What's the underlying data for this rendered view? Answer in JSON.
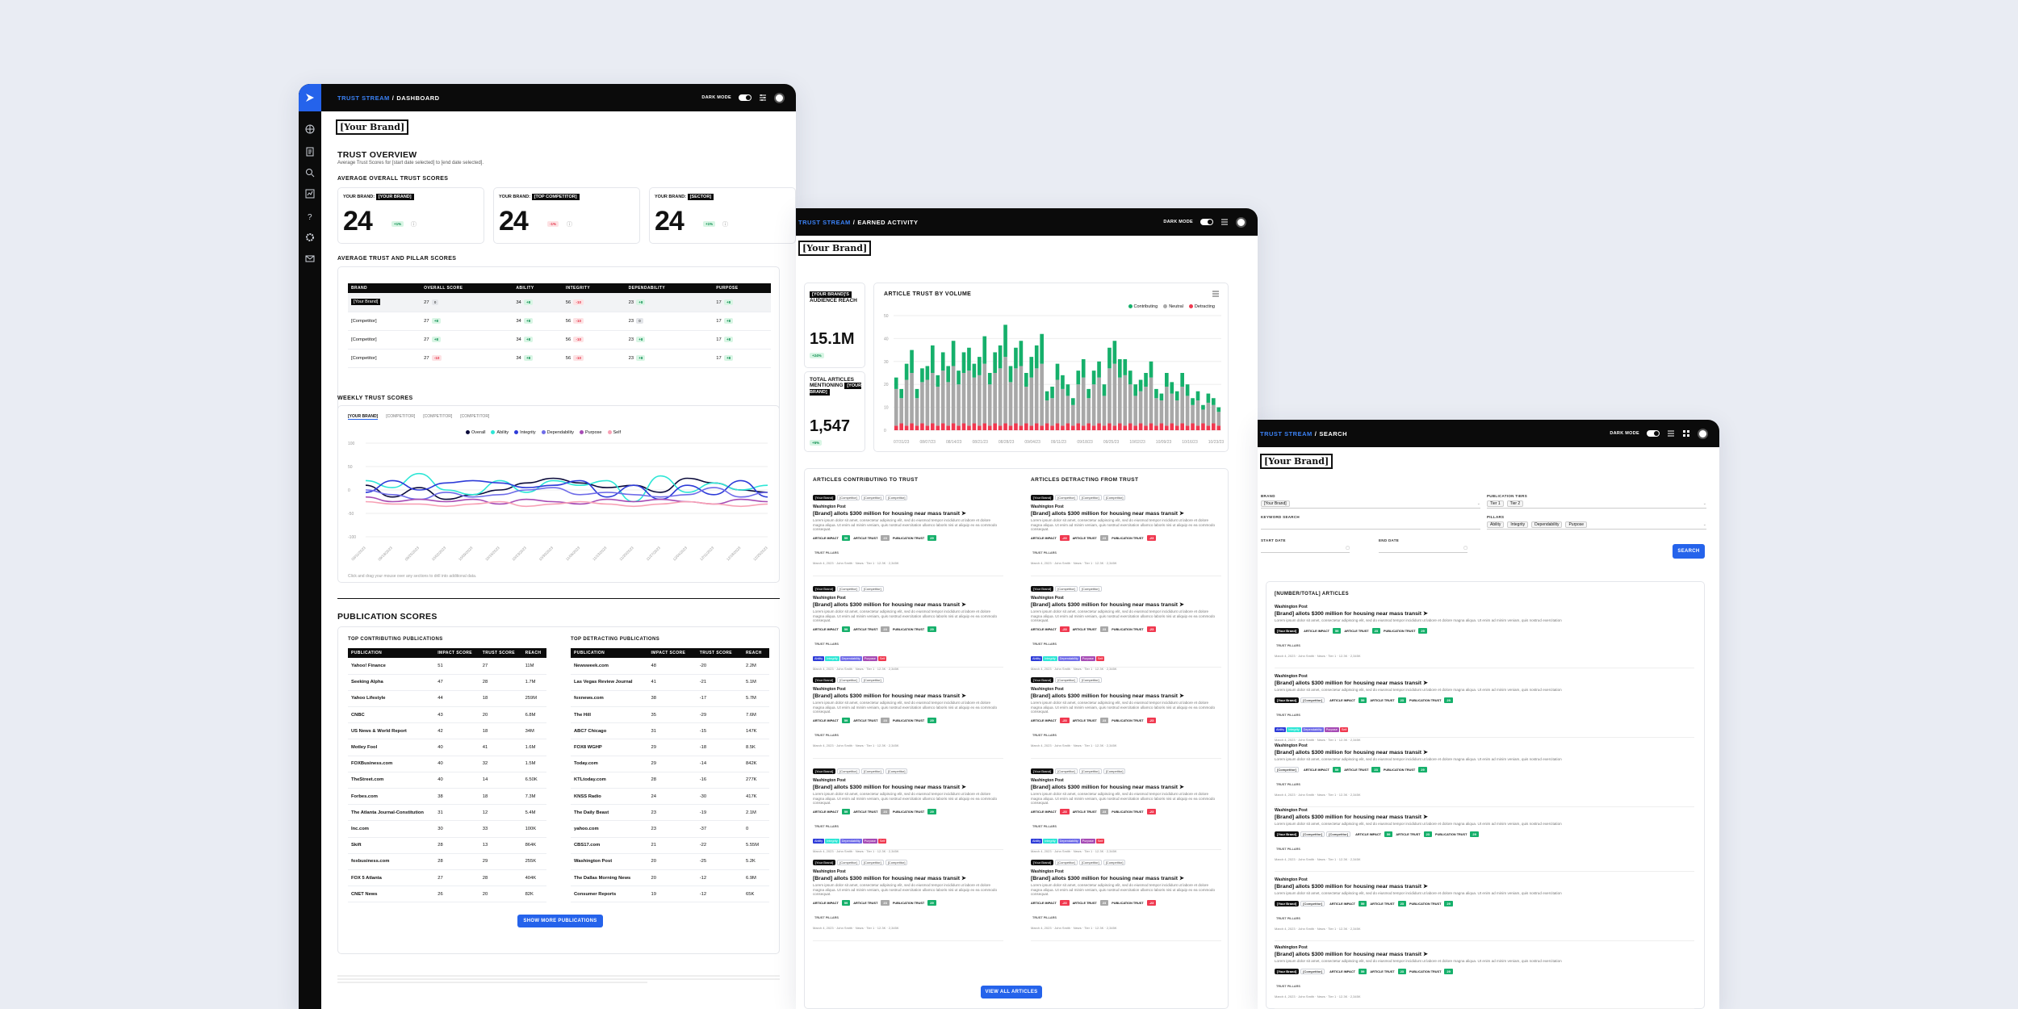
{
  "colors": {
    "accent": "#2563eb",
    "contributing": "#16b06b",
    "neutral": "#a8a8a8",
    "detracting": "#f0384f",
    "overall": "#0b0b3b",
    "ability": "#2ee6d6",
    "integrity": "#2d3bd8",
    "dependability": "#6f6ce8",
    "purpose": "#a64bb5",
    "self": "#f7a1b5"
  },
  "dashboard": {
    "breadcrumb_app": "TRUST STREAM",
    "breadcrumb_sep": "/",
    "breadcrumb_page": "DASHBOARD",
    "dark_mode": "DARK MODE",
    "brand": "[Your Brand]",
    "title": "TRUST OVERVIEW",
    "subtitle": "Average Trust Scores for [start date selected] to [end date selected].",
    "avg_overall_heading": "AVERAGE OVERALL TRUST SCORES",
    "scores": [
      {
        "label": "YOUR BRAND:",
        "chip": "[YOUR BRAND]",
        "value": "24",
        "delta": "+1%",
        "delta_type": "pos"
      },
      {
        "label": "YOUR BRAND:",
        "chip": "[TOP COMPETITOR]",
        "value": "24",
        "delta": "-1%",
        "delta_type": "neg"
      },
      {
        "label": "YOUR BRAND:",
        "chip": "[SECTOR]",
        "value": "24",
        "delta": "+1%",
        "delta_type": "pos"
      }
    ],
    "pillar_heading": "AVERAGE TRUST AND PILLAR SCORES",
    "pillar_columns": [
      "BRAND",
      "OVERALL SCORE",
      "ABILITY",
      "INTEGRITY",
      "DEPENDABILITY",
      "PURPOSE"
    ],
    "pillar_rows": [
      {
        "brand": "[Your Brand]",
        "cells": [
          [
            "27",
            "0",
            "neu"
          ],
          [
            "34",
            "+8",
            "pos"
          ],
          [
            "56",
            "-10",
            "neg"
          ],
          [
            "23",
            "+8",
            "pos"
          ],
          [
            "17",
            "+8",
            "pos"
          ]
        ]
      },
      {
        "brand": "[Competitor]",
        "cells": [
          [
            "27",
            "+8",
            "pos"
          ],
          [
            "34",
            "+8",
            "pos"
          ],
          [
            "56",
            "-10",
            "neg"
          ],
          [
            "23",
            "0",
            "neu"
          ],
          [
            "17",
            "+8",
            "pos"
          ]
        ]
      },
      {
        "brand": "[Competitor]",
        "cells": [
          [
            "27",
            "+8",
            "pos"
          ],
          [
            "34",
            "+8",
            "pos"
          ],
          [
            "56",
            "-10",
            "neg"
          ],
          [
            "23",
            "+8",
            "pos"
          ],
          [
            "17",
            "+8",
            "pos"
          ]
        ]
      },
      {
        "brand": "[Competitor]",
        "cells": [
          [
            "27",
            "-10",
            "neg"
          ],
          [
            "34",
            "+8",
            "pos"
          ],
          [
            "56",
            "-10",
            "neg"
          ],
          [
            "23",
            "+8",
            "pos"
          ],
          [
            "17",
            "+8",
            "pos"
          ]
        ]
      }
    ],
    "weekly_heading": "WEEKLY TRUST SCORES",
    "weekly_tabs": [
      "[YOUR BRAND]",
      "[COMPETITOR]",
      "[COMPETITOR]",
      "[COMPETITOR]"
    ],
    "weekly_note": "Click and drag your mouse over any sections to drill into additional data.",
    "pub_heading": "PUBLICATION SCORES",
    "top_contrib_heading": "TOP CONTRIBUTING PUBLICATIONS",
    "top_detract_heading": "TOP DETRACTING PUBLICATIONS",
    "pub_columns": [
      "PUBLICATION",
      "IMPACT SCORE",
      "TRUST SCORE",
      "REACH"
    ],
    "contrib_rows": [
      [
        "Yahoo! Finance",
        "51",
        "27",
        "11M"
      ],
      [
        "Seeking Alpha",
        "47",
        "28",
        "1.7M"
      ],
      [
        "Yahoo Lifestyle",
        "44",
        "18",
        "259M"
      ],
      [
        "CNBC",
        "43",
        "20",
        "6.8M"
      ],
      [
        "US News & World Report",
        "42",
        "18",
        "34M"
      ],
      [
        "Motley Fool",
        "40",
        "41",
        "1.6M"
      ],
      [
        "FOXBusiness.com",
        "40",
        "32",
        "1.5M"
      ],
      [
        "TheStreet.com",
        "40",
        "14",
        "6.50K"
      ],
      [
        "Forbes.com",
        "38",
        "18",
        "7.3M"
      ],
      [
        "The Atlanta Journal-Constitution",
        "31",
        "12",
        "5.4M"
      ],
      [
        "Inc.com",
        "30",
        "33",
        "100K"
      ],
      [
        "Skift",
        "28",
        "13",
        "864K"
      ],
      [
        "foxbusiness.com",
        "28",
        "29",
        "255K"
      ],
      [
        "FOX 5 Atlanta",
        "27",
        "28",
        "404K"
      ],
      [
        "CNET News",
        "26",
        "20",
        "82K"
      ]
    ],
    "detract_rows": [
      [
        "Newsweek.com",
        "48",
        "-20",
        "2.2M"
      ],
      [
        "Las Vegas Review Journal",
        "41",
        "-21",
        "5.1M"
      ],
      [
        "foxnews.com",
        "38",
        "-17",
        "5.7M"
      ],
      [
        "The Hill",
        "35",
        "-29",
        "7.6M"
      ],
      [
        "ABC7 Chicago",
        "31",
        "-15",
        "147K"
      ],
      [
        "FOX8 WGHP",
        "29",
        "-18",
        "8.5K"
      ],
      [
        "Today.com",
        "29",
        "-14",
        "842K"
      ],
      [
        "KTLtoday.com",
        "28",
        "-16",
        "277K"
      ],
      [
        "KNSS Radio",
        "24",
        "-30",
        "417K"
      ],
      [
        "The Daily Beast",
        "23",
        "-19",
        "2.1M"
      ],
      [
        "yahoo.com",
        "23",
        "-37",
        "0"
      ],
      [
        "CBS17.com",
        "21",
        "-22",
        "5.55M"
      ],
      [
        "Washington Post",
        "20",
        "-25",
        "5.2K"
      ],
      [
        "The Dallas Morning News",
        "20",
        "-12",
        "6.9M"
      ],
      [
        "Consumer Reports",
        "19",
        "-12",
        "65K"
      ]
    ],
    "show_more": "SHOW MORE PUBLICATIONS"
  },
  "weekly_chart": {
    "type": "line",
    "legend": [
      "Overall",
      "Ability",
      "Integrity",
      "Dependability",
      "Purpose",
      "Self"
    ],
    "yticks": [
      "100",
      "50",
      "0",
      "-50",
      "-100"
    ],
    "ylim": [
      -100,
      100
    ],
    "x": [
      "09/11/2023",
      "09/18/2023",
      "09/25/2023",
      "10/02/2023",
      "10/09/2023",
      "10/16/2023",
      "10/23/2023",
      "10/30/2023",
      "11/06/2023",
      "11/13/2023",
      "11/20/2023",
      "11/27/2023",
      "12/04/2023",
      "12/11/2023",
      "12/18/2023",
      "12/25/2023"
    ],
    "series": [
      {
        "name": "Overall",
        "values": [
          10,
          -15,
          5,
          -20,
          -10,
          0,
          15,
          25,
          15,
          5,
          10,
          -5,
          25,
          15,
          0,
          -5
        ]
      },
      {
        "name": "Ability",
        "values": [
          20,
          5,
          35,
          0,
          -10,
          20,
          -5,
          20,
          10,
          20,
          -25,
          30,
          -5,
          15,
          0,
          10
        ]
      },
      {
        "name": "Integrity",
        "values": [
          -5,
          20,
          0,
          15,
          20,
          15,
          5,
          10,
          20,
          -15,
          10,
          -20,
          10,
          -10,
          20,
          -15
        ]
      },
      {
        "name": "Dependability",
        "values": [
          0,
          -10,
          -20,
          -5,
          -15,
          -10,
          0,
          5,
          -10,
          -5,
          -10,
          -15,
          -10,
          5,
          -15,
          -5
        ]
      },
      {
        "name": "Purpose",
        "values": [
          -15,
          -25,
          -20,
          -25,
          -20,
          -30,
          -20,
          -25,
          -30,
          -20,
          -25,
          -20,
          -25,
          -30,
          -20,
          -25
        ]
      },
      {
        "name": "Self",
        "values": [
          -25,
          -30,
          -30,
          -35,
          -30,
          -25,
          -35,
          -30,
          -25,
          -30,
          -35,
          -30,
          -25,
          -30,
          -35,
          -30
        ]
      }
    ]
  },
  "earned": {
    "breadcrumb_app": "TRUST STREAM",
    "breadcrumb_sep": "/",
    "breadcrumb_page": "EARNED ACTIVITY",
    "dark_mode": "DARK MODE",
    "brand": "[Your Brand]",
    "reach_label_pre": "",
    "reach_chip": "[YOUR BRAND]'S",
    "reach_label_post": "AUDIENCE REACH",
    "reach_value": "15.1M",
    "reach_delta": "+24%",
    "total_label": "TOTAL ARTICLES MENTIONING",
    "total_chip": "[YOUR BRAND]",
    "total_value": "1,547",
    "total_delta": "+5%",
    "chart_title": "ARTICLE TRUST BY VOLUME",
    "legend": [
      "Contributing",
      "Neutral",
      "Detracting"
    ],
    "yticks": [
      "50",
      "40",
      "30",
      "20",
      "10",
      "0"
    ],
    "xlabels": [
      "07/31/23",
      "08/07/23",
      "08/14/23",
      "08/21/23",
      "08/28/23",
      "09/04/23",
      "09/11/23",
      "09/18/23",
      "09/25/23",
      "10/02/23",
      "10/09/23",
      "10/16/23",
      "10/23/23"
    ],
    "contrib_heading": "ARTICLES CONTRIBUTING TO TRUST",
    "detract_heading": "ARTICLES DETRACTING FROM TRUST",
    "view_all": "VIEW ALL ARTICLES"
  },
  "chart_data": {
    "type": "bar",
    "stacked": true,
    "categories": [
      "07/31/23",
      "",
      "",
      "",
      "",
      "08/07/23",
      "",
      "",
      "",
      "",
      "08/14/23",
      "",
      "",
      "",
      "",
      "08/21/23",
      "",
      "",
      "",
      "",
      "08/28/23",
      "",
      "",
      "",
      "",
      "09/04/23",
      "",
      "",
      "",
      "",
      "09/11/23",
      "",
      "",
      "",
      "",
      "09/18/23",
      "",
      "",
      "",
      "",
      "09/25/23",
      "",
      "",
      "",
      "",
      "10/02/23",
      "",
      "",
      "",
      "",
      "10/09/23",
      "",
      "",
      "",
      "",
      "10/16/23",
      "",
      "",
      "",
      "",
      "10/23/23",
      "",
      ""
    ],
    "series": [
      {
        "name": "Contributing",
        "values": [
          5,
          4,
          7,
          10,
          4,
          6,
          6,
          12,
          5,
          8,
          7,
          11,
          6,
          9,
          10,
          6,
          8,
          12,
          5,
          9,
          10,
          14,
          7,
          9,
          11,
          6,
          9,
          10,
          13,
          4,
          5,
          7,
          6,
          5,
          3,
          6,
          8,
          4,
          6,
          7,
          5,
          9,
          10,
          8,
          7,
          6,
          5,
          5,
          6,
          7,
          4,
          3,
          6,
          5,
          4,
          6,
          5,
          3,
          4,
          2,
          4,
          3,
          2
        ]
      },
      {
        "name": "Neutral",
        "values": [
          16,
          11,
          20,
          22,
          12,
          18,
          20,
          22,
          17,
          23,
          19,
          25,
          18,
          22,
          24,
          20,
          22,
          26,
          18,
          22,
          25,
          29,
          19,
          24,
          26,
          16,
          21,
          24,
          27,
          10,
          12,
          19,
          16,
          12,
          9,
          17,
          21,
          11,
          18,
          20,
          13,
          24,
          27,
          20,
          22,
          17,
          13,
          14,
          17,
          20,
          12,
          10,
          17,
          13,
          11,
          16,
          13,
          8,
          11,
          6,
          10,
          8,
          6
        ]
      },
      {
        "name": "Detracting",
        "values": [
          2,
          3,
          2,
          3,
          2,
          3,
          2,
          3,
          2,
          3,
          2,
          3,
          2,
          3,
          2,
          3,
          2,
          3,
          2,
          3,
          2,
          3,
          2,
          3,
          2,
          3,
          2,
          3,
          2,
          3,
          2,
          3,
          2,
          3,
          2,
          3,
          2,
          3,
          2,
          3,
          2,
          3,
          2,
          3,
          2,
          3,
          2,
          3,
          2,
          3,
          2,
          3,
          2,
          3,
          2,
          3,
          2,
          3,
          2,
          3,
          2,
          3,
          2
        ]
      }
    ],
    "ylim": [
      0,
      50
    ],
    "title": "ARTICLE TRUST BY VOLUME",
    "legend_position": "top-right"
  },
  "article": {
    "publisher": "Washington Post",
    "headline": "[Brand] allots $300 million for housing near mass transit",
    "lorem": "Lorem ipsum dolor sit amet, consectetur adipiscing elit, sed do eiusmod tempor incididunt ut labore et dolore magna aliqua. Ut enim ad minim veniam, quis nostrud exercitation ullamco laboris nisi ut aliquip ex ea commodo consequat.",
    "chip_brand": "[Your Brand]",
    "chip_comp": "[Competitor]",
    "article_impact": "ARTICLE IMPACT",
    "article_trust": "ARTICLE TRUST",
    "publication_trust": "PUBLICATION TRUST",
    "trust_pillars": "TRUST PILLARS",
    "pillars": [
      "Ability",
      "Integrity",
      "Dependability",
      "Purpose",
      "Self"
    ],
    "meta": "March 4, 2023  ·  John Smith  ·  News  ·  Tier 1  ·  12.3K  ·  2,345K",
    "v1": "59",
    "v2": "23",
    "v3": "29",
    "neg1": "-23"
  },
  "search": {
    "breadcrumb_app": "TRUST STREAM",
    "breadcrumb_sep": "/",
    "breadcrumb_page": "SEARCH",
    "dark_mode": "DARK MODE",
    "brand": "[Your Brand]",
    "brand_label": "BRAND",
    "brand_value": "[Your Brand]",
    "pubtiers_label": "PUBLICATION TIERS",
    "tier1": "Tier 1",
    "tier2": "Tier 2",
    "keyword_label": "KEYWORD SEARCH",
    "pillars_label": "PILLARS",
    "pillars": [
      "Ability",
      "Integrity",
      "Dependability",
      "Purpose"
    ],
    "start_label": "START DATE",
    "end_label": "END DATE",
    "search_btn": "SEARCH",
    "results_heading": "[NUMBER/TOTAL] ARTICLES",
    "result_lorem": "Lorem ipsum dolor sit amet, consectetur adipiscing elit, sed do eiusmod tempor incididunt ut labore et dolore magna aliqua. Ut enim ad minim veniam, quis nostrud exercitation"
  }
}
